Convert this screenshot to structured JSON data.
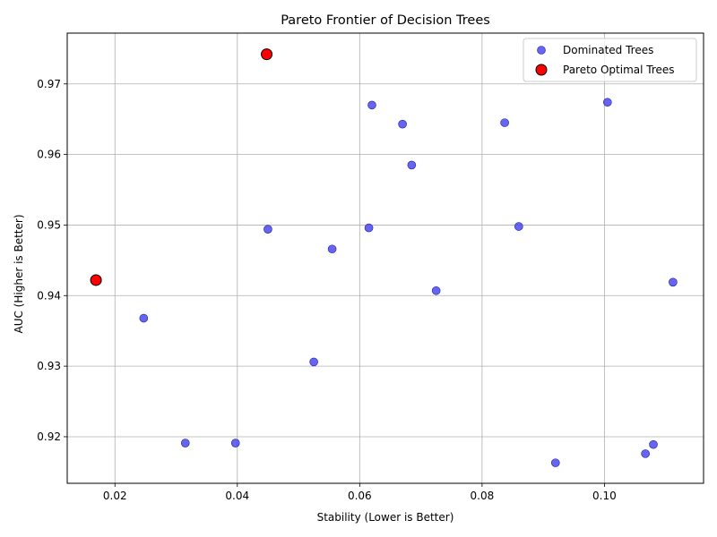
{
  "chart_data": {
    "type": "scatter",
    "title": "Pareto Frontier of Decision Trees",
    "xlabel": "Stability (Lower is Better)",
    "ylabel": "AUC (Higher is Better)",
    "xlim": [
      0.0122,
      0.1162
    ],
    "ylim": [
      0.9134,
      0.9772
    ],
    "xticks": [
      0.02,
      0.04,
      0.06,
      0.08,
      0.1
    ],
    "xtick_labels": [
      "0.02",
      "0.04",
      "0.06",
      "0.08",
      "0.10"
    ],
    "yticks": [
      0.92,
      0.93,
      0.94,
      0.95,
      0.96,
      0.97
    ],
    "ytick_labels": [
      "0.92",
      "0.93",
      "0.94",
      "0.95",
      "0.96",
      "0.97"
    ],
    "grid": true,
    "legend_position": "top-right",
    "series": [
      {
        "name": "Dominated Trees",
        "color": "#4a4af0",
        "edge_color": "#2020a0",
        "points": [
          {
            "x": 0.062,
            "y": 0.967
          },
          {
            "x": 0.067,
            "y": 0.9643
          },
          {
            "x": 0.0837,
            "y": 0.9645
          },
          {
            "x": 0.1005,
            "y": 0.9674
          },
          {
            "x": 0.0685,
            "y": 0.9585
          },
          {
            "x": 0.045,
            "y": 0.9494
          },
          {
            "x": 0.0615,
            "y": 0.9496
          },
          {
            "x": 0.086,
            "y": 0.9498
          },
          {
            "x": 0.0555,
            "y": 0.9466
          },
          {
            "x": 0.0725,
            "y": 0.9407
          },
          {
            "x": 0.1112,
            "y": 0.9419
          },
          {
            "x": 0.0247,
            "y": 0.9368
          },
          {
            "x": 0.0525,
            "y": 0.9306
          },
          {
            "x": 0.0315,
            "y": 0.9191
          },
          {
            "x": 0.0397,
            "y": 0.9191
          },
          {
            "x": 0.108,
            "y": 0.9189
          },
          {
            "x": 0.1067,
            "y": 0.9176
          },
          {
            "x": 0.092,
            "y": 0.9163
          }
        ]
      },
      {
        "name": "Pareto Optimal Trees",
        "color": "#ff0000",
        "edge_color": "#000000",
        "points": [
          {
            "x": 0.0448,
            "y": 0.9742
          },
          {
            "x": 0.0169,
            "y": 0.9422
          }
        ]
      }
    ]
  }
}
